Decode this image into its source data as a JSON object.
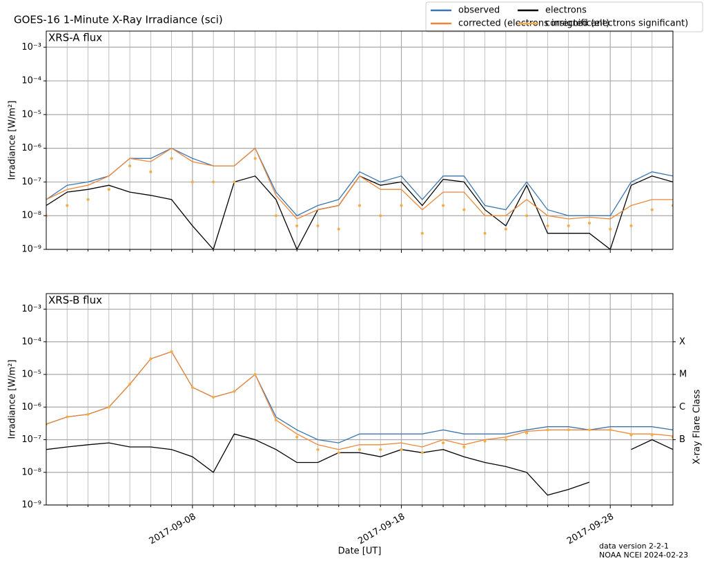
{
  "title": "GOES-16 1-Minute X-Ray Irradiance (sci)",
  "footer": [
    "data version 2-2-1",
    "NOAA NCEI 2024-02-23"
  ],
  "legend": {
    "location": "upper right",
    "columns": 2
  },
  "chart_data": [
    {
      "type": "line",
      "label": "XRS-A flux",
      "ylabel": "Irradiance [W/m²]",
      "log_y": true,
      "grid": true,
      "x": [
        "2017-09-01",
        "2017-09-02",
        "2017-09-03",
        "2017-09-04",
        "2017-09-05",
        "2017-09-06",
        "2017-09-07",
        "2017-09-08",
        "2017-09-09",
        "2017-09-10",
        "2017-09-11",
        "2017-09-12",
        "2017-09-13",
        "2017-09-14",
        "2017-09-15",
        "2017-09-16",
        "2017-09-17",
        "2017-09-18",
        "2017-09-19",
        "2017-09-20",
        "2017-09-21",
        "2017-09-22",
        "2017-09-23",
        "2017-09-24",
        "2017-09-25",
        "2017-09-26",
        "2017-09-27",
        "2017-09-28",
        "2017-09-29",
        "2017-09-30",
        "2017-10-01"
      ],
      "xlim": [
        "2017-09-01",
        "2017-10-01"
      ],
      "xticks": [
        "2017-09-08",
        "2017-09-18",
        "2017-09-28"
      ],
      "xticks_minor": [
        "2017-09-02",
        "2017-09-03",
        "2017-09-04",
        "2017-09-05",
        "2017-09-06",
        "2017-09-07",
        "2017-09-09",
        "2017-09-10",
        "2017-09-11",
        "2017-09-12",
        "2017-09-13",
        "2017-09-14",
        "2017-09-15",
        "2017-09-16",
        "2017-09-17",
        "2017-09-19",
        "2017-09-20",
        "2017-09-21",
        "2017-09-22",
        "2017-09-23",
        "2017-09-24",
        "2017-09-25",
        "2017-09-26",
        "2017-09-27",
        "2017-09-29",
        "2017-09-30"
      ],
      "ylim": [
        1e-09,
        0.003
      ],
      "yticks": [
        {
          "value": 1e-09,
          "label": "10⁻⁹"
        },
        {
          "value": 1e-08,
          "label": "10⁻⁸"
        },
        {
          "value": 1e-07,
          "label": "10⁻⁷"
        },
        {
          "value": 1e-06,
          "label": "10⁻⁶"
        },
        {
          "value": 1e-05,
          "label": "10⁻⁵"
        },
        {
          "value": 0.0001,
          "label": "10⁻⁴"
        },
        {
          "value": 0.001,
          "label": "10⁻³"
        }
      ],
      "series": [
        {
          "name": "observed",
          "color": "#3b75af",
          "style": "line",
          "values": [
            3e-08,
            8e-08,
            1e-07,
            1.5e-07,
            5e-07,
            5e-07,
            1e-06,
            5e-07,
            3e-07,
            3e-07,
            1e-06,
            5e-08,
            1e-08,
            2e-08,
            3e-08,
            2e-07,
            1e-07,
            1.5e-07,
            3e-08,
            1.5e-07,
            1.5e-07,
            2e-08,
            1.5e-08,
            1e-07,
            1.5e-08,
            1e-08,
            1e-08,
            1e-08,
            1e-07,
            2e-07,
            1.5e-07
          ]
        },
        {
          "name": "electrons",
          "color": "#000000",
          "style": "line",
          "values": [
            2e-08,
            5e-08,
            6e-08,
            8e-08,
            5e-08,
            4e-08,
            3e-08,
            5e-09,
            1e-09,
            1e-07,
            1.5e-07,
            3e-08,
            1e-09,
            1.5e-08,
            2e-08,
            1.5e-07,
            8e-08,
            1e-07,
            2e-08,
            1.2e-07,
            1e-07,
            1.5e-08,
            5e-09,
            8e-08,
            3e-09,
            3e-09,
            3e-09,
            1e-09,
            8e-08,
            1.5e-07,
            1e-07
          ]
        },
        {
          "name": "corrected (electrons insignificant)",
          "color": "#ef8636",
          "style": "line",
          "values": [
            3e-08,
            6e-08,
            8e-08,
            1.5e-07,
            5e-07,
            4e-07,
            1e-06,
            4e-07,
            3e-07,
            3e-07,
            1e-06,
            4e-08,
            8e-09,
            1.5e-08,
            2e-08,
            1.5e-07,
            6e-08,
            6e-08,
            1.5e-08,
            5e-08,
            5e-08,
            1e-08,
            1e-08,
            3e-08,
            1e-08,
            8e-09,
            9e-09,
            8e-09,
            2e-08,
            3e-08,
            3e-08
          ]
        },
        {
          "name": "corrected (electrons significant)",
          "color": "#f3ac44",
          "style": "dots",
          "values": [
            1e-08,
            2e-08,
            3e-08,
            6e-08,
            3e-07,
            2e-07,
            5e-07,
            1e-07,
            1e-07,
            1e-07,
            5e-07,
            1e-08,
            5e-09,
            5e-09,
            4e-09,
            2e-08,
            1e-08,
            2e-08,
            3e-09,
            2e-08,
            1.5e-08,
            3e-09,
            4e-09,
            1e-08,
            5e-09,
            5e-09,
            6e-09,
            4e-09,
            5e-09,
            1.5e-08,
            2e-08
          ]
        }
      ]
    },
    {
      "type": "line",
      "label": "XRS-B flux",
      "ylabel": "Irradiance [W/m²]",
      "xlabel": "Date [UT]",
      "log_y": true,
      "grid": true,
      "x": [
        "2017-09-01",
        "2017-09-02",
        "2017-09-03",
        "2017-09-04",
        "2017-09-05",
        "2017-09-06",
        "2017-09-07",
        "2017-09-08",
        "2017-09-09",
        "2017-09-10",
        "2017-09-11",
        "2017-09-12",
        "2017-09-13",
        "2017-09-14",
        "2017-09-15",
        "2017-09-16",
        "2017-09-17",
        "2017-09-18",
        "2017-09-19",
        "2017-09-20",
        "2017-09-21",
        "2017-09-22",
        "2017-09-23",
        "2017-09-24",
        "2017-09-25",
        "2017-09-26",
        "2017-09-27",
        "2017-09-28",
        "2017-09-29",
        "2017-09-30",
        "2017-10-01"
      ],
      "xlim": [
        "2017-09-01",
        "2017-10-01"
      ],
      "xticks": [
        "2017-09-08",
        "2017-09-18",
        "2017-09-28"
      ],
      "xticks_minor": [
        "2017-09-02",
        "2017-09-03",
        "2017-09-04",
        "2017-09-05",
        "2017-09-06",
        "2017-09-07",
        "2017-09-09",
        "2017-09-10",
        "2017-09-11",
        "2017-09-12",
        "2017-09-13",
        "2017-09-14",
        "2017-09-15",
        "2017-09-16",
        "2017-09-17",
        "2017-09-19",
        "2017-09-20",
        "2017-09-21",
        "2017-09-22",
        "2017-09-23",
        "2017-09-24",
        "2017-09-25",
        "2017-09-26",
        "2017-09-27",
        "2017-09-29",
        "2017-09-30"
      ],
      "ylim": [
        1e-09,
        0.003
      ],
      "yticks": [
        {
          "value": 1e-09,
          "label": "10⁻⁹"
        },
        {
          "value": 1e-08,
          "label": "10⁻⁸"
        },
        {
          "value": 1e-07,
          "label": "10⁻⁷"
        },
        {
          "value": 1e-06,
          "label": "10⁻⁶"
        },
        {
          "value": 1e-05,
          "label": "10⁻⁵"
        },
        {
          "value": 0.0001,
          "label": "10⁻⁴"
        },
        {
          "value": 0.001,
          "label": "10⁻³"
        }
      ],
      "y2label": "X-ray Flare Class",
      "y2ticks": [
        {
          "value": 1e-07,
          "label": "B"
        },
        {
          "value": 1e-06,
          "label": "C"
        },
        {
          "value": 1e-05,
          "label": "M"
        },
        {
          "value": 0.0001,
          "label": "X"
        }
      ],
      "series": [
        {
          "name": "observed",
          "color": "#3b75af",
          "style": "line",
          "values": [
            3e-07,
            5e-07,
            6e-07,
            1e-06,
            5e-06,
            3e-05,
            5e-05,
            4e-06,
            2e-06,
            3e-06,
            1e-05,
            5e-07,
            2e-07,
            1e-07,
            8e-08,
            1.5e-07,
            1.5e-07,
            1.5e-07,
            1.5e-07,
            2e-07,
            1.5e-07,
            1.5e-07,
            1.5e-07,
            2e-07,
            2.5e-07,
            2.5e-07,
            2e-07,
            2.5e-07,
            2.5e-07,
            2.5e-07,
            2e-07
          ]
        },
        {
          "name": "electrons",
          "color": "#000000",
          "style": "line",
          "values": [
            5e-08,
            6e-08,
            7e-08,
            8e-08,
            6e-08,
            6e-08,
            5e-08,
            3e-08,
            1e-08,
            1.5e-07,
            1e-07,
            5e-08,
            2e-08,
            2e-08,
            4e-08,
            4e-08,
            3e-08,
            5e-08,
            4e-08,
            5e-08,
            3e-08,
            2e-08,
            1.5e-08,
            1e-08,
            2e-09,
            3e-09,
            5e-09,
            null,
            5e-08,
            1e-07,
            5e-08
          ]
        },
        {
          "name": "corrected (electrons insignificant)",
          "color": "#ef8636",
          "style": "line",
          "values": [
            3e-07,
            5e-07,
            6e-07,
            1e-06,
            5e-06,
            3e-05,
            5e-05,
            4e-06,
            2e-06,
            3e-06,
            1e-05,
            4e-07,
            1.5e-07,
            7e-08,
            5e-08,
            7e-08,
            7e-08,
            8e-08,
            6e-08,
            1e-07,
            7e-08,
            1e-07,
            1.2e-07,
            1.8e-07,
            2e-07,
            2e-07,
            2e-07,
            2e-07,
            1.5e-07,
            1.5e-07,
            1.3e-07
          ]
        },
        {
          "name": "corrected (electrons significant)",
          "color": "#f3ac44",
          "style": "dots",
          "values": [
            3e-07,
            5e-07,
            6e-07,
            1e-06,
            5e-06,
            3e-05,
            5e-05,
            4e-06,
            2e-06,
            3e-06,
            1e-05,
            4e-07,
            1.2e-07,
            5e-08,
            4e-08,
            5e-08,
            5e-08,
            5e-08,
            4e-08,
            8e-08,
            6e-08,
            9e-08,
            1e-07,
            1.6e-07,
            2e-07,
            2e-07,
            2e-07,
            2e-07,
            1.4e-07,
            1.4e-07,
            1.2e-07
          ]
        }
      ]
    }
  ]
}
